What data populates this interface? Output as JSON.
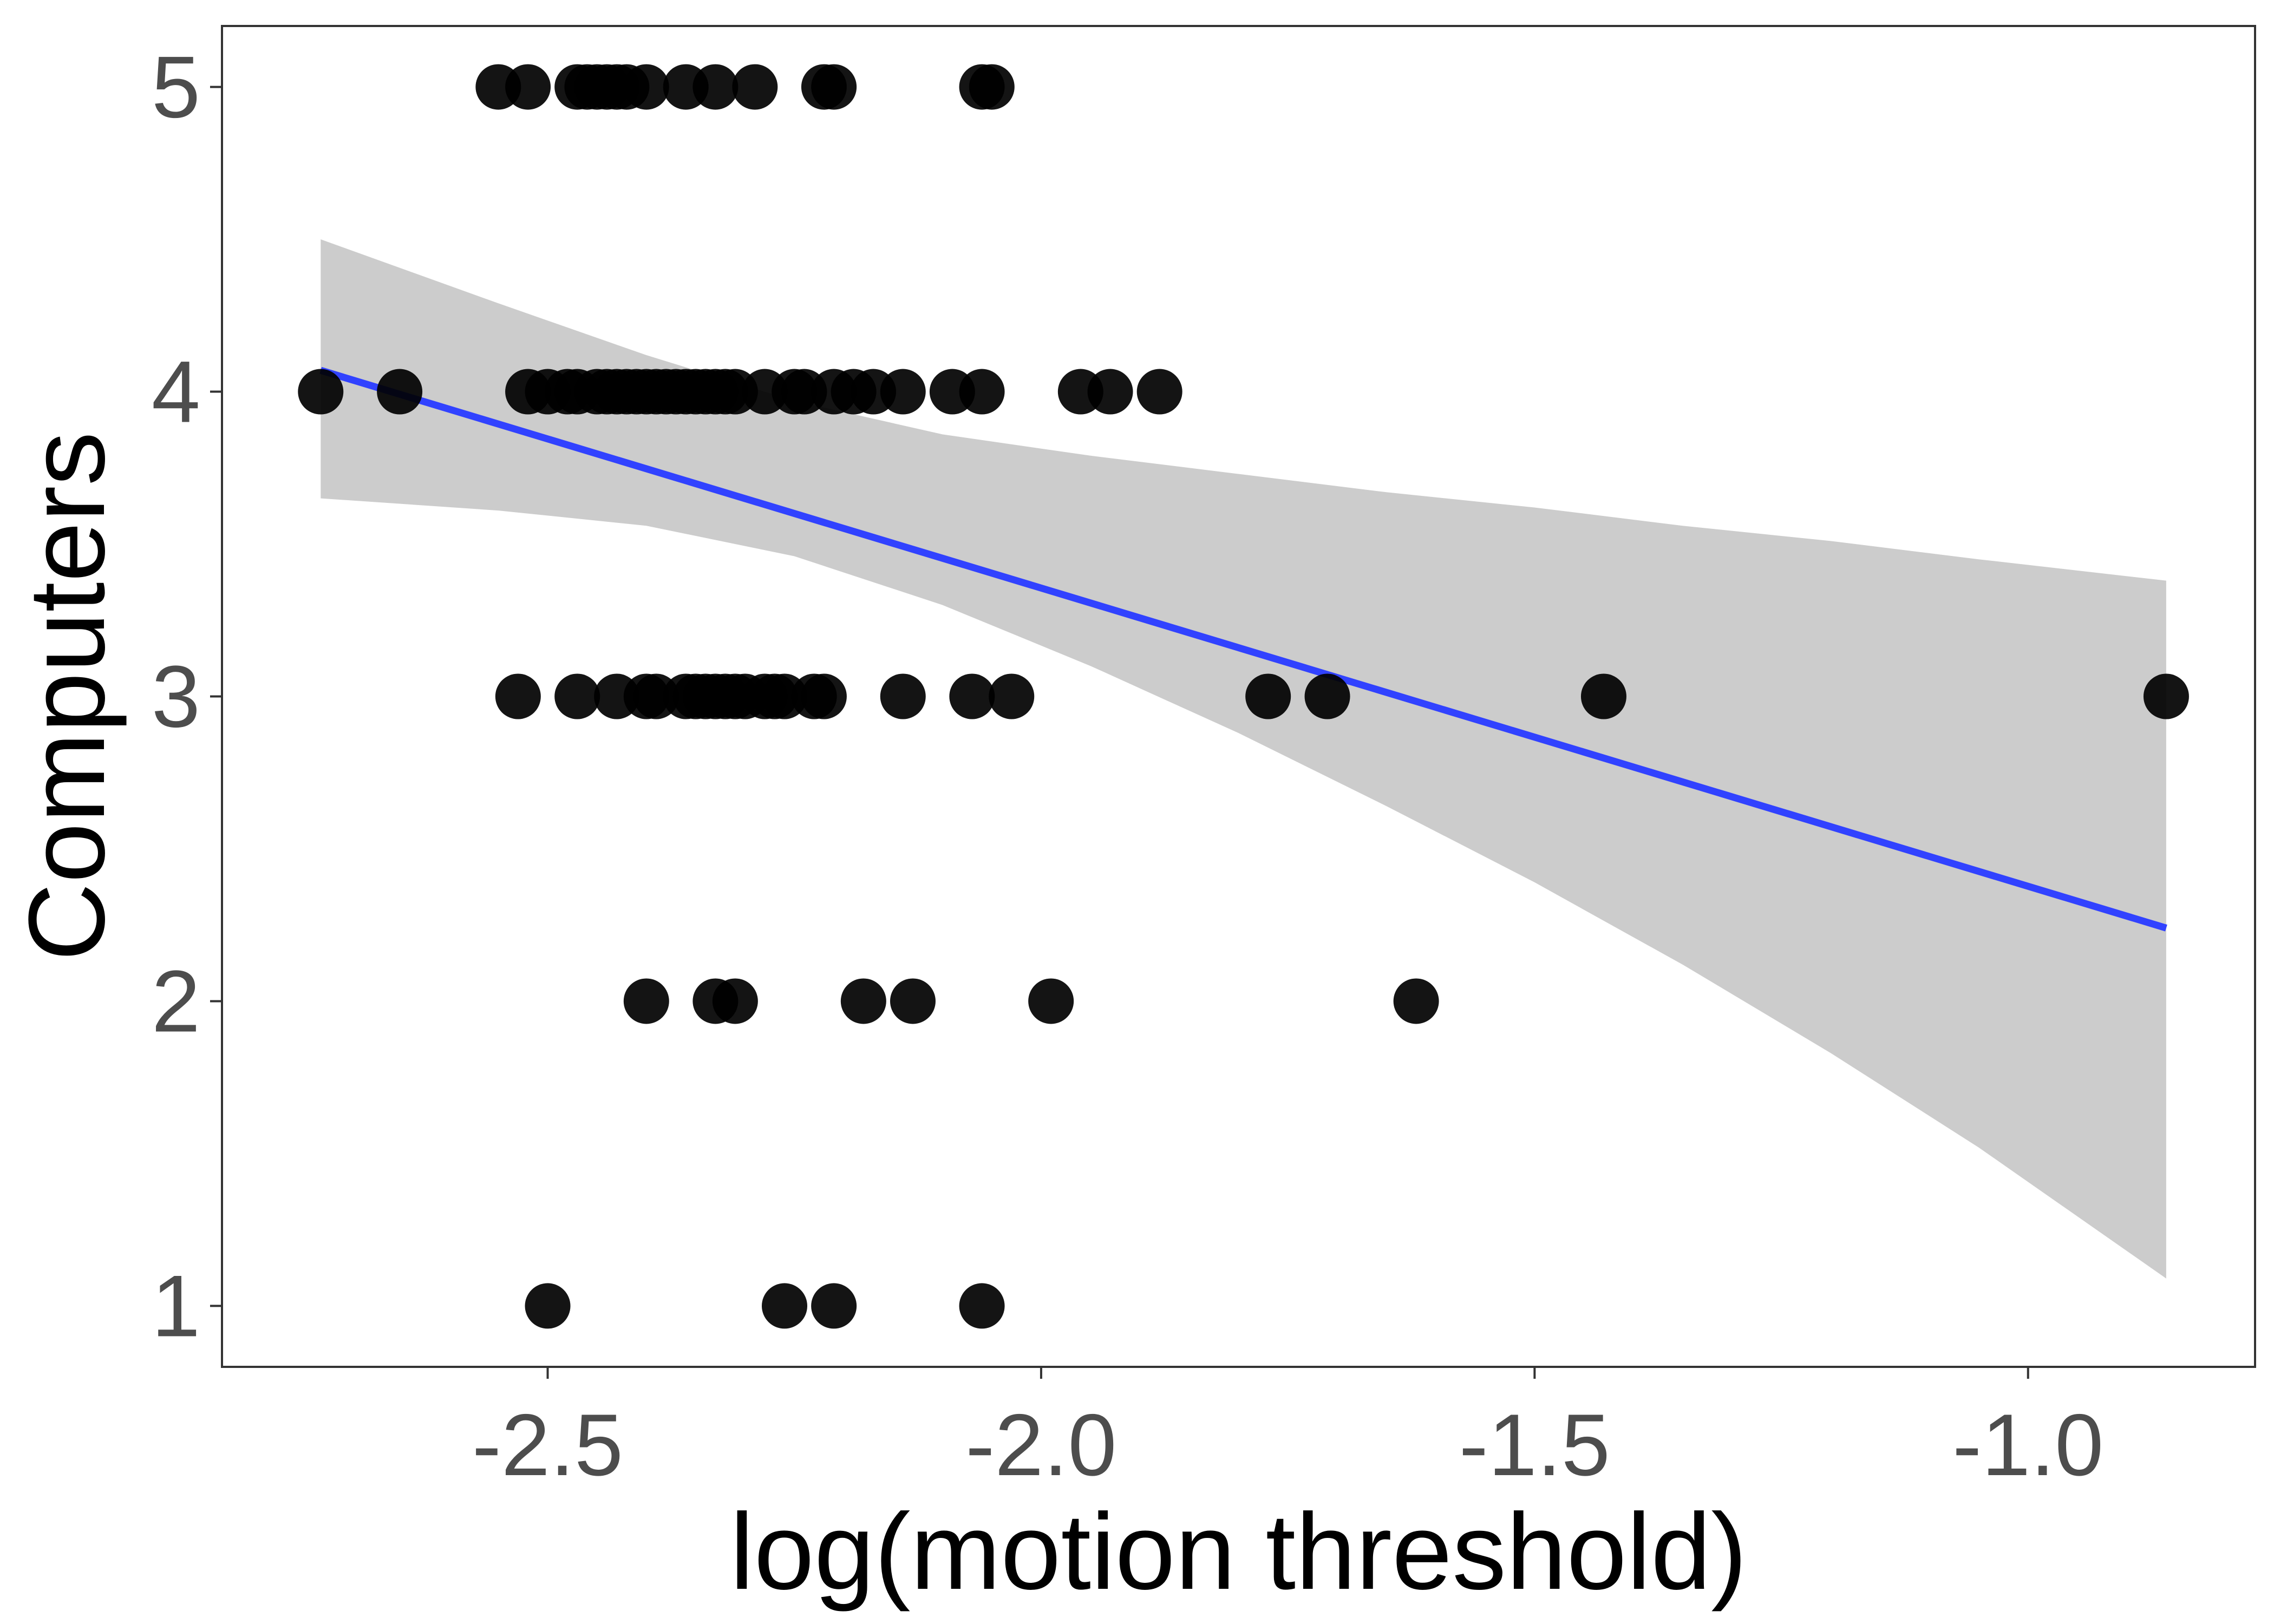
{
  "chart_data": {
    "type": "scatter",
    "title": "",
    "xlabel": "log(motion threshold)",
    "ylabel": "Computers",
    "xlim": [
      -2.83,
      -0.77
    ],
    "ylim": [
      0.8,
      5.2
    ],
    "x_ticks": [
      -2.5,
      -2.0,
      -1.5,
      -1.0
    ],
    "x_tick_labels": [
      "-2.5",
      "-2.0",
      "-1.5",
      "-1.0"
    ],
    "y_ticks": [
      1,
      2,
      3,
      4,
      5
    ],
    "y_tick_labels": [
      "1",
      "2",
      "3",
      "4",
      "5"
    ],
    "grid": false,
    "legend": "none",
    "points": [
      {
        "x": -2.55,
        "y": 5
      },
      {
        "x": -2.52,
        "y": 5
      },
      {
        "x": -2.47,
        "y": 5
      },
      {
        "x": -2.46,
        "y": 5
      },
      {
        "x": -2.45,
        "y": 5
      },
      {
        "x": -2.44,
        "y": 5
      },
      {
        "x": -2.43,
        "y": 5
      },
      {
        "x": -2.42,
        "y": 5
      },
      {
        "x": -2.4,
        "y": 5
      },
      {
        "x": -2.36,
        "y": 5
      },
      {
        "x": -2.33,
        "y": 5
      },
      {
        "x": -2.29,
        "y": 5
      },
      {
        "x": -2.22,
        "y": 5
      },
      {
        "x": -2.21,
        "y": 5
      },
      {
        "x": -2.06,
        "y": 5
      },
      {
        "x": -2.05,
        "y": 5
      },
      {
        "x": -2.73,
        "y": 4
      },
      {
        "x": -2.65,
        "y": 4
      },
      {
        "x": -2.52,
        "y": 4
      },
      {
        "x": -2.5,
        "y": 4
      },
      {
        "x": -2.48,
        "y": 4
      },
      {
        "x": -2.47,
        "y": 4
      },
      {
        "x": -2.45,
        "y": 4
      },
      {
        "x": -2.44,
        "y": 4
      },
      {
        "x": -2.43,
        "y": 4
      },
      {
        "x": -2.42,
        "y": 4
      },
      {
        "x": -2.41,
        "y": 4
      },
      {
        "x": -2.4,
        "y": 4
      },
      {
        "x": -2.39,
        "y": 4
      },
      {
        "x": -2.38,
        "y": 4
      },
      {
        "x": -2.37,
        "y": 4
      },
      {
        "x": -2.36,
        "y": 4
      },
      {
        "x": -2.35,
        "y": 4
      },
      {
        "x": -2.34,
        "y": 4
      },
      {
        "x": -2.33,
        "y": 4
      },
      {
        "x": -2.32,
        "y": 4
      },
      {
        "x": -2.31,
        "y": 4
      },
      {
        "x": -2.28,
        "y": 4
      },
      {
        "x": -2.25,
        "y": 4
      },
      {
        "x": -2.24,
        "y": 4
      },
      {
        "x": -2.21,
        "y": 4
      },
      {
        "x": -2.19,
        "y": 4
      },
      {
        "x": -2.17,
        "y": 4
      },
      {
        "x": -2.14,
        "y": 4
      },
      {
        "x": -2.09,
        "y": 4
      },
      {
        "x": -2.06,
        "y": 4
      },
      {
        "x": -1.96,
        "y": 4
      },
      {
        "x": -1.93,
        "y": 4
      },
      {
        "x": -1.88,
        "y": 4
      },
      {
        "x": -2.53,
        "y": 3
      },
      {
        "x": -2.47,
        "y": 3
      },
      {
        "x": -2.43,
        "y": 3
      },
      {
        "x": -2.4,
        "y": 3
      },
      {
        "x": -2.39,
        "y": 3
      },
      {
        "x": -2.36,
        "y": 3
      },
      {
        "x": -2.35,
        "y": 3
      },
      {
        "x": -2.34,
        "y": 3
      },
      {
        "x": -2.33,
        "y": 3
      },
      {
        "x": -2.32,
        "y": 3
      },
      {
        "x": -2.31,
        "y": 3
      },
      {
        "x": -2.3,
        "y": 3
      },
      {
        "x": -2.28,
        "y": 3
      },
      {
        "x": -2.27,
        "y": 3
      },
      {
        "x": -2.26,
        "y": 3
      },
      {
        "x": -2.23,
        "y": 3
      },
      {
        "x": -2.22,
        "y": 3
      },
      {
        "x": -2.14,
        "y": 3
      },
      {
        "x": -2.07,
        "y": 3
      },
      {
        "x": -2.03,
        "y": 3
      },
      {
        "x": -1.77,
        "y": 3
      },
      {
        "x": -1.71,
        "y": 3
      },
      {
        "x": -1.43,
        "y": 3
      },
      {
        "x": -0.86,
        "y": 3
      },
      {
        "x": -2.4,
        "y": 2
      },
      {
        "x": -2.33,
        "y": 2
      },
      {
        "x": -2.31,
        "y": 2
      },
      {
        "x": -2.18,
        "y": 2
      },
      {
        "x": -2.13,
        "y": 2
      },
      {
        "x": -1.99,
        "y": 2
      },
      {
        "x": -1.62,
        "y": 2
      },
      {
        "x": -2.5,
        "y": 1
      },
      {
        "x": -2.26,
        "y": 1
      },
      {
        "x": -2.21,
        "y": 1
      },
      {
        "x": -2.06,
        "y": 1
      }
    ],
    "fit_line": {
      "x": [
        -2.73,
        -0.86
      ],
      "y": [
        4.07,
        2.24
      ],
      "color": "#3142ff"
    },
    "confidence_band": {
      "x": [
        -2.73,
        -2.55,
        -2.4,
        -2.25,
        -2.1,
        -1.95,
        -1.8,
        -1.65,
        -1.5,
        -1.35,
        -1.2,
        -1.05,
        -0.86
      ],
      "upper": [
        4.5,
        4.29,
        4.12,
        3.97,
        3.86,
        3.79,
        3.73,
        3.67,
        3.62,
        3.56,
        3.51,
        3.45,
        3.38
      ],
      "lower": [
        3.65,
        3.61,
        3.56,
        3.46,
        3.3,
        3.1,
        2.88,
        2.64,
        2.39,
        2.12,
        1.83,
        1.52,
        1.09
      ],
      "color": "#cccccc"
    },
    "point_color": "#000000"
  }
}
